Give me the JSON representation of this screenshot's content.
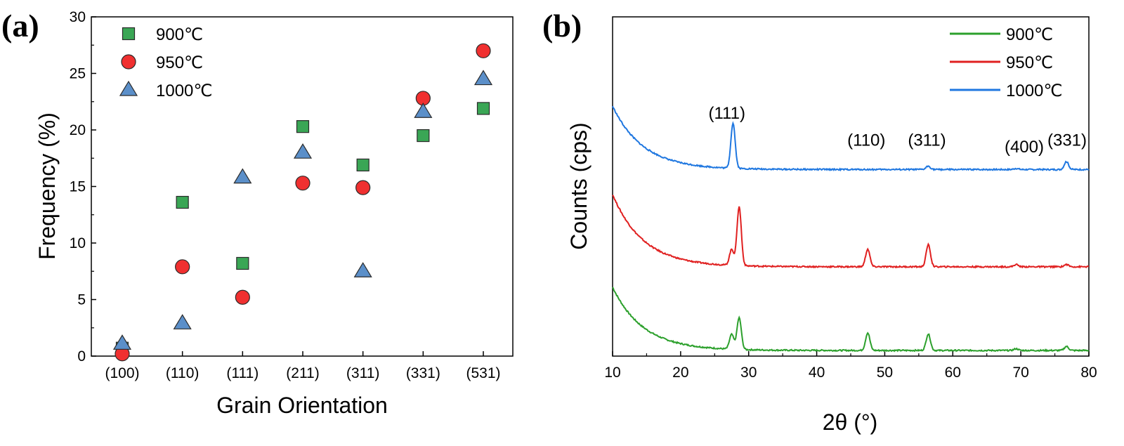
{
  "panel_a_label": "(a)",
  "panel_b_label": "(b)",
  "chart_data": [
    {
      "type": "scatter",
      "xlabel": "Grain Orientation",
      "ylabel": "Frequency (%)",
      "ylim": [
        0,
        30
      ],
      "yticks": [
        0,
        5,
        10,
        15,
        20,
        25,
        30
      ],
      "categories": [
        "(100)",
        "(110)",
        "(111)",
        "(211)",
        "(311)",
        "(331)",
        "(531)"
      ],
      "legend_position": "top-left",
      "series": [
        {
          "name": "900℃",
          "marker": "square",
          "color": "#3aa655",
          "values": [
            0.7,
            13.6,
            8.2,
            20.3,
            16.9,
            19.5,
            21.9
          ]
        },
        {
          "name": "950℃",
          "marker": "circle",
          "color": "#f03030",
          "values": [
            0.2,
            7.9,
            5.2,
            15.3,
            14.9,
            22.8,
            27.0
          ]
        },
        {
          "name": "1000℃",
          "marker": "triangle",
          "color": "#5b8fc9",
          "values": [
            1.1,
            2.9,
            15.8,
            18.0,
            7.5,
            21.6,
            24.5
          ]
        }
      ]
    },
    {
      "type": "line",
      "xlabel": "2θ (°)",
      "ylabel": "Counts (cps)",
      "xlim": [
        10,
        80
      ],
      "xticks": [
        10,
        20,
        30,
        40,
        50,
        60,
        70,
        80
      ],
      "legend_position": "top-right",
      "series": [
        {
          "name": "900℃",
          "color": "#2ca02c",
          "baseline": 0.5,
          "start": 6.1,
          "decay": 4.5,
          "peaks": [
            [
              27.5,
              1.3
            ],
            [
              28.6,
              2.8
            ],
            [
              47.5,
              1.55
            ],
            [
              56.4,
              1.45
            ],
            [
              69.3,
              0.15
            ],
            [
              76.7,
              0.35
            ]
          ]
        },
        {
          "name": "950℃",
          "color": "#e02020",
          "baseline": 7.9,
          "start": 14.3,
          "decay": 4.5,
          "peaks": [
            [
              27.5,
              1.4
            ],
            [
              28.6,
              5.2
            ],
            [
              47.5,
              1.55
            ],
            [
              56.4,
              1.95
            ],
            [
              69.3,
              0.2
            ],
            [
              76.7,
              0.2
            ]
          ]
        },
        {
          "name": "1000℃",
          "color": "#1f77e0",
          "baseline": 16.5,
          "start": 22.1,
          "decay": 4.5,
          "peaks": [
            [
              27.7,
              4.0
            ],
            [
              56.4,
              0.3
            ],
            [
              69.3,
              0.1
            ],
            [
              76.7,
              0.7
            ]
          ]
        }
      ],
      "annotations": [
        {
          "text": "(111)",
          "x": 26.8,
          "y": 21.0
        },
        {
          "text": "(110)",
          "x": 47.3,
          "y": 18.6
        },
        {
          "text": "(311)",
          "x": 56.2,
          "y": 18.6
        },
        {
          "text": "(400)",
          "x": 70.5,
          "y": 18.0
        },
        {
          "text": "(331)",
          "x": 76.8,
          "y": 18.6
        }
      ]
    }
  ]
}
